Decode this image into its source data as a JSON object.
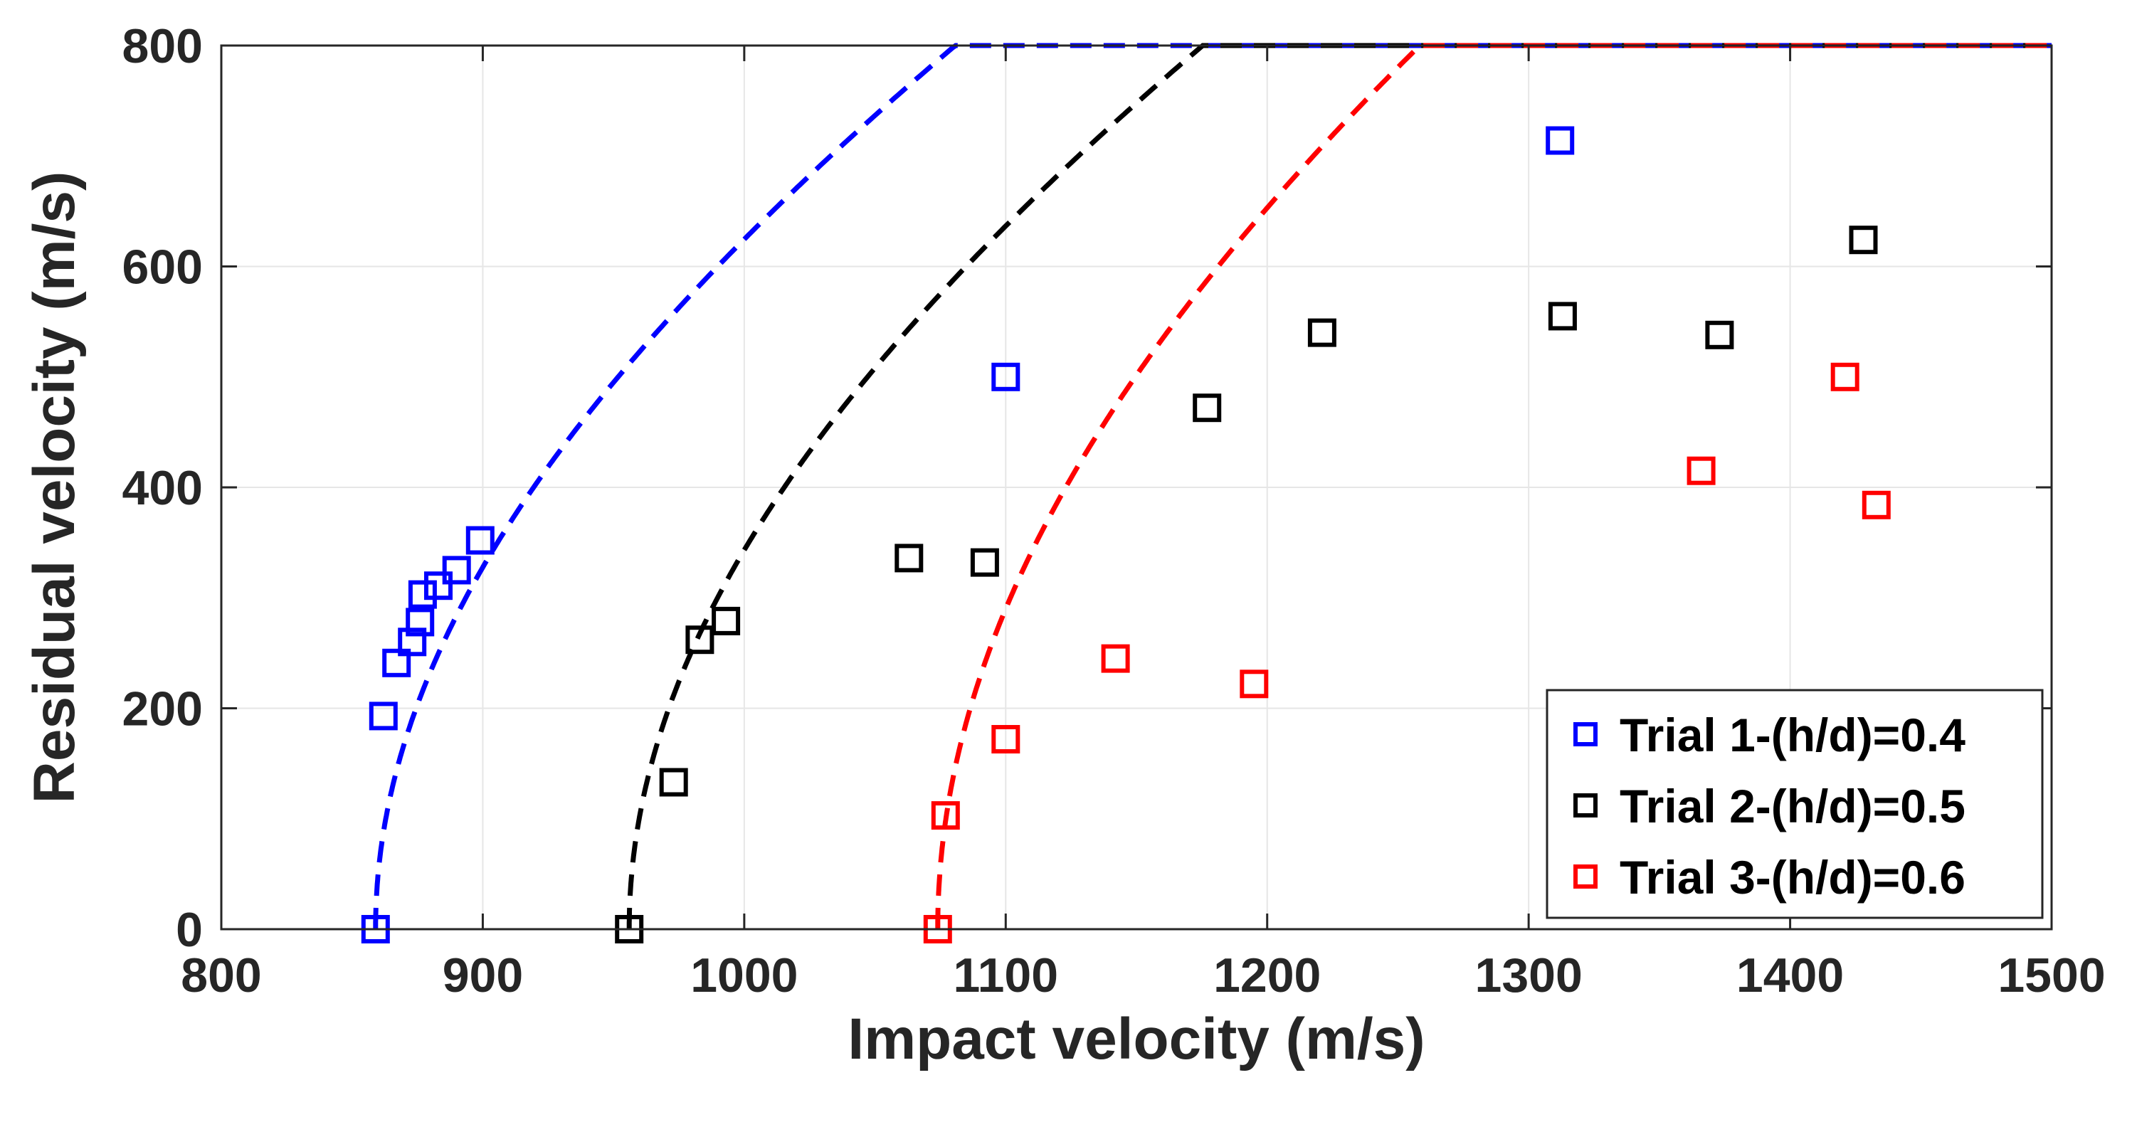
{
  "chart_data": {
    "type": "scatter",
    "title": "",
    "xlabel": "Impact velocity (m/s)",
    "ylabel": "Residual velocity (m/s)",
    "xlim": [
      800,
      1500
    ],
    "ylim": [
      0,
      800
    ],
    "xticks": [
      800,
      900,
      1000,
      1100,
      1200,
      1300,
      1400,
      1500
    ],
    "yticks": [
      0,
      200,
      400,
      600,
      800
    ],
    "xtick_labels": [
      "800",
      "900",
      "1000",
      "1100",
      "1200",
      "1300",
      "1400",
      "1500"
    ],
    "ytick_labels": [
      "0",
      "200",
      "400",
      "600",
      "800"
    ],
    "grid": true,
    "legend_position": "bottom-right",
    "series": [
      {
        "name": "Trial 1-(h/d)=0.4",
        "color": "#0000ff",
        "marker": "square",
        "points": [
          [
            859,
            0
          ],
          [
            862,
            193
          ],
          [
            867,
            241
          ],
          [
            873,
            260
          ],
          [
            876,
            278
          ],
          [
            877,
            303
          ],
          [
            883,
            311
          ],
          [
            890,
            325
          ],
          [
            899,
            352
          ],
          [
            1100,
            500
          ],
          [
            1312,
            714
          ]
        ],
        "fit": {
          "style": "dashed",
          "v_limit": 859,
          "a": 1.22,
          "p": 2.0
        }
      },
      {
        "name": "Trial 2-(h/d)=0.5",
        "color": "#000000",
        "marker": "square",
        "points": [
          [
            956,
            0
          ],
          [
            973,
            133
          ],
          [
            983,
            262
          ],
          [
            993,
            279
          ],
          [
            1063,
            336
          ],
          [
            1092,
            332
          ],
          [
            1177,
            472
          ],
          [
            1221,
            540
          ],
          [
            1313,
            555
          ],
          [
            1373,
            538
          ],
          [
            1428,
            624
          ]
        ],
        "fit": {
          "style": "dashed",
          "v_limit": 956,
          "a": 1.17,
          "p": 2.0
        }
      },
      {
        "name": "Trial 3-(h/d)=0.6",
        "color": "#ff0000",
        "marker": "square",
        "points": [
          [
            1074,
            0
          ],
          [
            1077,
            103
          ],
          [
            1100,
            172
          ],
          [
            1142,
            245
          ],
          [
            1195,
            222
          ],
          [
            1366,
            415
          ],
          [
            1421,
            500
          ],
          [
            1433,
            384
          ]
        ],
        "fit": {
          "style": "dashed",
          "v_limit": 1074,
          "a": 1.22,
          "p": 2.0
        }
      }
    ]
  }
}
